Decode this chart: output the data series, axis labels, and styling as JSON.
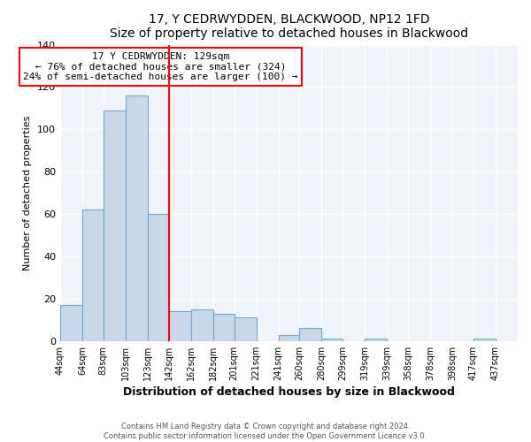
{
  "title": "17, Y CEDRWYDDEN, BLACKWOOD, NP12 1FD",
  "subtitle": "Size of property relative to detached houses in Blackwood",
  "xlabel": "Distribution of detached houses by size in Blackwood",
  "ylabel": "Number of detached properties",
  "footer_line1": "Contains HM Land Registry data © Crown copyright and database right 2024.",
  "footer_line2": "Contains public sector information licensed under the Open Government Licence v3.0.",
  "bin_labels": [
    "44sqm",
    "64sqm",
    "83sqm",
    "103sqm",
    "123sqm",
    "142sqm",
    "162sqm",
    "182sqm",
    "201sqm",
    "221sqm",
    "241sqm",
    "260sqm",
    "280sqm",
    "299sqm",
    "319sqm",
    "339sqm",
    "358sqm",
    "378sqm",
    "398sqm",
    "417sqm",
    "437sqm"
  ],
  "bar_heights": [
    17,
    62,
    109,
    116,
    60,
    14,
    15,
    13,
    11,
    0,
    3,
    6,
    1,
    0,
    1,
    0,
    0,
    0,
    0,
    1,
    0
  ],
  "bar_color": "#c8d8e8",
  "bar_edgecolor": "#6aaad0",
  "property_line_label": "17 Y CEDRWYDDEN: 129sqm",
  "annotation_line1": "← 76% of detached houses are smaller (324)",
  "annotation_line2": "24% of semi-detached houses are larger (100) →",
  "annotation_box_edgecolor": "red",
  "vline_color": "red",
  "ylim": [
    0,
    140
  ],
  "bin_edges_values": [
    44,
    64,
    83,
    103,
    123,
    142,
    162,
    182,
    201,
    221,
    241,
    260,
    280,
    299,
    319,
    339,
    358,
    378,
    398,
    417,
    437
  ],
  "vline_x_index": 5,
  "bg_color": "#f0f4f8"
}
